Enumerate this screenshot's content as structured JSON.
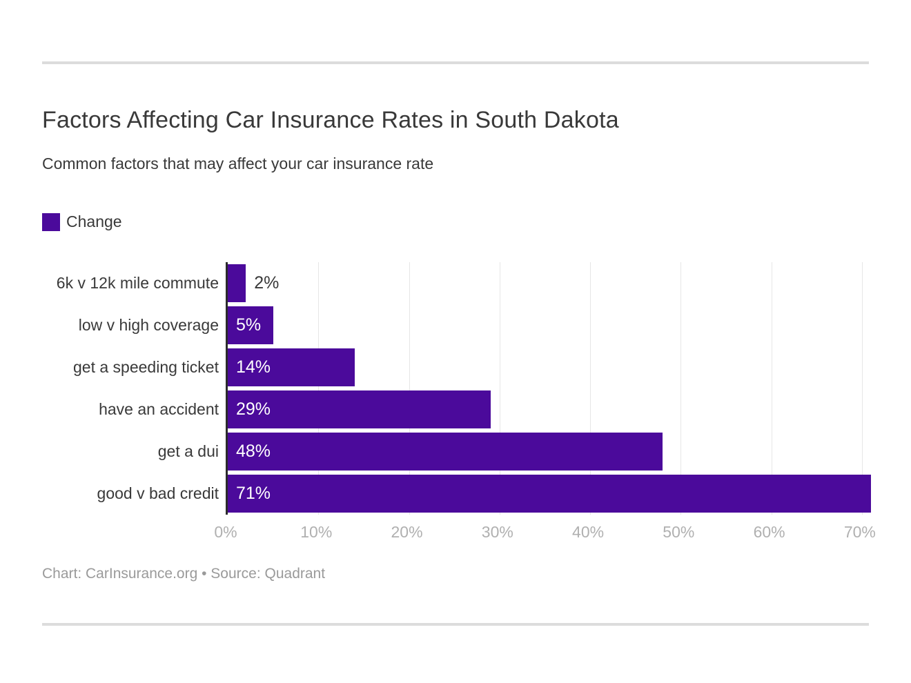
{
  "header": {
    "title": "Factors Affecting Car Insurance Rates in South Dakota",
    "subtitle": "Common factors that may affect your car insurance rate"
  },
  "legend": {
    "label": "Change",
    "color": "#4b0a9b"
  },
  "chart_data": {
    "type": "bar",
    "orientation": "horizontal",
    "title": "Factors Affecting Car Insurance Rates in South Dakota",
    "subtitle": "Common factors that may affect your car insurance rate",
    "series_name": "Change",
    "categories": [
      "6k v 12k mile commute",
      "low v high coverage",
      "get a speeding ticket",
      "have an accident",
      "get a dui",
      "good v bad credit"
    ],
    "values": [
      2,
      5,
      14,
      29,
      48,
      71
    ],
    "value_labels": [
      "2%",
      "5%",
      "14%",
      "29%",
      "48%",
      "71%"
    ],
    "xlabel": "",
    "ylabel": "",
    "xlim": [
      0,
      71
    ],
    "x_ticks": [
      0,
      10,
      20,
      30,
      40,
      50,
      60,
      70
    ],
    "x_tick_labels": [
      "0%",
      "10%",
      "20%",
      "30%",
      "40%",
      "50%",
      "60%",
      "70%"
    ],
    "grid": true,
    "gridline_color": "#e6e6e6",
    "axis_line_color": "#2b2b2b",
    "bar_color": "#4b0a9b",
    "value_label_color_inside": "#ffffff",
    "value_label_color_outside": "#393939",
    "legend_position": "top-left"
  },
  "footer": {
    "text": "Chart: CarInsurance.org • Source: Quadrant"
  }
}
